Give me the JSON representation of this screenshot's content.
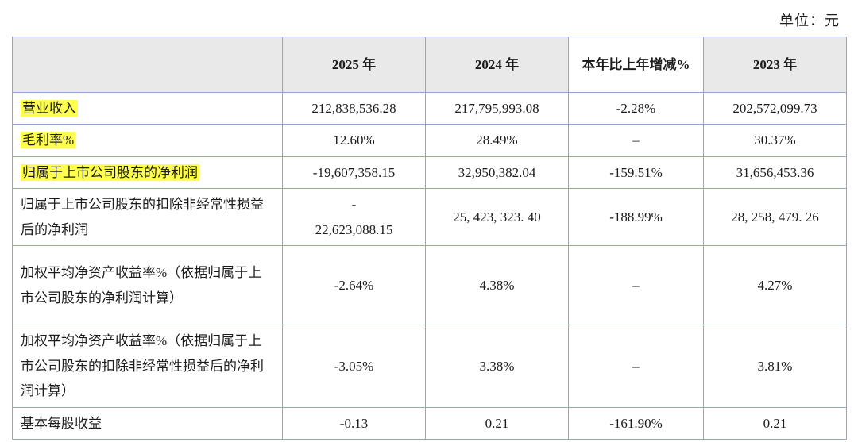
{
  "unit_label": "单位：元",
  "colors": {
    "border": "#8ea9cf",
    "header_bg": "#e9e9e9",
    "highlight_yellow": "#ffff4d",
    "text": "#1c1c1c"
  },
  "table": {
    "headers": {
      "col0": "",
      "col1": "2025 年",
      "col2": "2024 年",
      "col3": "本年比上年增减%",
      "col4": "2023 年"
    },
    "rows": [
      {
        "label": "营业收入",
        "highlight": true,
        "values": [
          "212,838,536.28",
          "217,795,993.08",
          "-2.28%",
          "202,572,099.73"
        ]
      },
      {
        "label": "毛利率%",
        "highlight": true,
        "values": [
          "12.60%",
          "28.49%",
          "–",
          "30.37%"
        ]
      },
      {
        "label": "归属于上市公司股东的净利润",
        "highlight": true,
        "values": [
          "-19,607,358.15",
          "32,950,382.04",
          "-159.51%",
          "31,656,453.36"
        ]
      },
      {
        "label": "归属于上市公司股东的扣除非经常性损益后的净利润",
        "highlight": false,
        "values": [
          "-\n22,623,088.15",
          "25, 423, 323. 40",
          "-188.99%",
          "28, 258, 479. 26"
        ]
      },
      {
        "label": "加权平均净资产收益率%（依据归属于上市公司股东的净利润计算）",
        "highlight": false,
        "values": [
          "-2.64%",
          "4.38%",
          "–",
          "4.27%"
        ]
      },
      {
        "label": "加权平均净资产收益率%（依据归属于上市公司股东的扣除非经常性损益后的净利润计算）",
        "highlight": false,
        "values": [
          "-3.05%",
          "3.38%",
          "–",
          "3.81%"
        ]
      },
      {
        "label": "基本每股收益",
        "highlight": false,
        "values": [
          "-0.13",
          "0.21",
          "-161.90%",
          "0.21"
        ]
      }
    ]
  }
}
